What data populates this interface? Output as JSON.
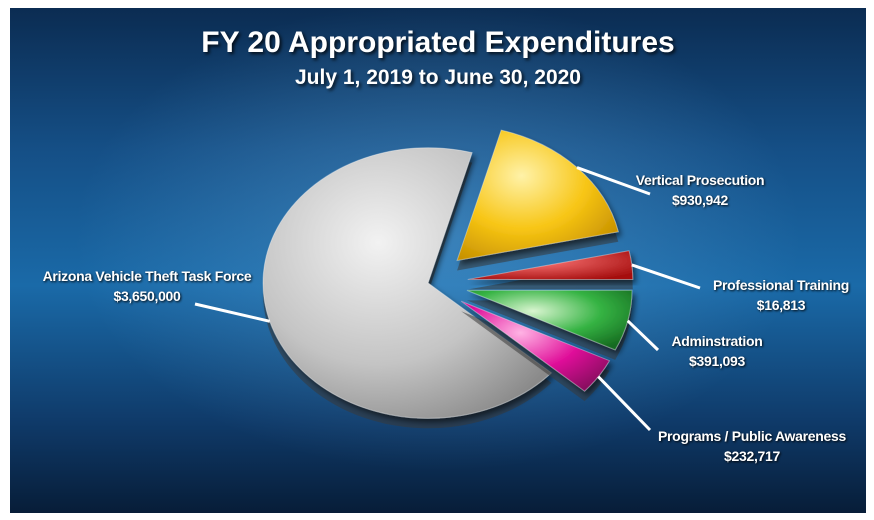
{
  "chart_data": {
    "type": "pie",
    "title": "FY 20 Appropriated Expenditures",
    "subtitle": "July 1, 2019 to June 30, 2020",
    "slices": [
      {
        "label": "Arizona Vehicle Theft Task Force",
        "value": 3650000,
        "value_text": "$3,650,000",
        "color": "#c9c9c9"
      },
      {
        "label": "Vertical Prosecution",
        "value": 930942,
        "value_text": "$930,942",
        "color": "#f5c21a"
      },
      {
        "label": "Professional Training",
        "value": 16813,
        "value_text": "$16,813",
        "color": "#d21f1f"
      },
      {
        "label": "Adminstration",
        "value": 391093,
        "value_text": "$391,093",
        "color": "#2ea83a"
      },
      {
        "label": "Programs / Public Awareness",
        "value": 232717,
        "value_text": "$232,717",
        "color": "#e0109a"
      }
    ]
  }
}
